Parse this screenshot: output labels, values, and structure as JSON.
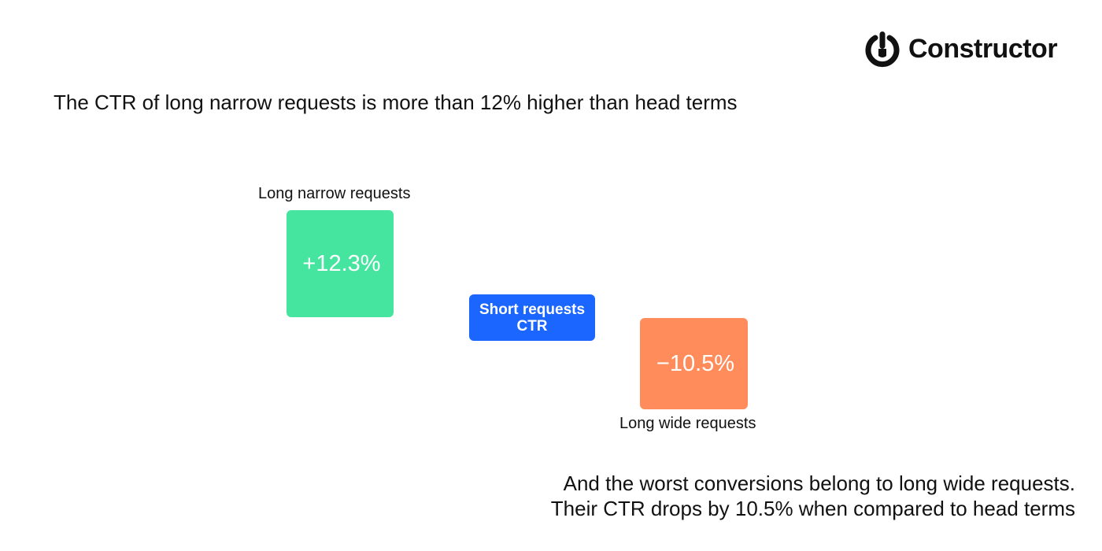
{
  "logo": {
    "icon": "power-icon",
    "text": "Constructor"
  },
  "headline": "The CTR of long narrow requests is more than 12% higher than head terms",
  "diagram": {
    "long_narrow": {
      "label": "Long narrow requests",
      "value": "+12.3%",
      "color": "#45e5a0"
    },
    "short": {
      "line1": "Short requests",
      "line2": "CTR",
      "color": "#1a66ff"
    },
    "long_wide": {
      "label": "Long wide requests",
      "value": "−10.5%",
      "color": "#ff8c5a"
    }
  },
  "footer": {
    "line1": "And the worst conversions belong to long wide requests.",
    "line2": "Their CTR drops by 10.5% when compared to head terms"
  }
}
